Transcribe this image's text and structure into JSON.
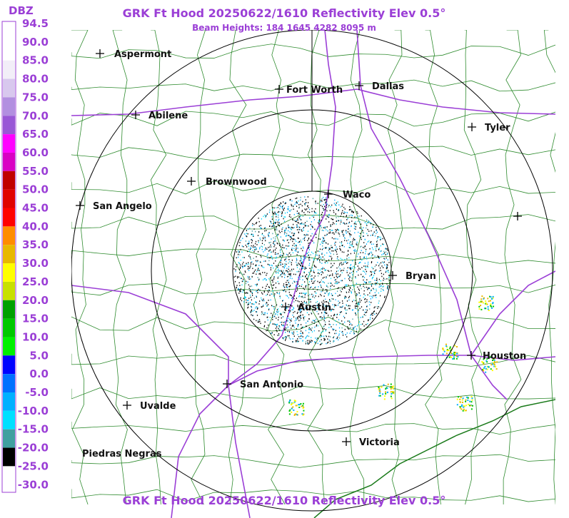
{
  "header": {
    "title": "GRK Ft Hood 20250622/1610 Reflectivity Elev 0.5°",
    "subtitle": "Beam Heights: 184 1645 4282 8095 m",
    "footer": "GRK Ft Hood 20250622/1610 Reflectivity Elev 0.5°"
  },
  "legend": {
    "title": "DBZ",
    "labels": [
      "94.5",
      "90.0",
      "85.0",
      "80.0",
      "75.0",
      "70.0",
      "65.0",
      "60.0",
      "55.0",
      "50.0",
      "45.0",
      "40.0",
      "35.0",
      "30.0",
      "25.0",
      "20.0",
      "15.0",
      "10.0",
      "5.0",
      "0.0",
      "-5.0",
      "-10.0",
      "-15.0",
      "-20.0",
      "-25.0",
      "-30.0"
    ]
  },
  "cities": [
    "Aspermont",
    "Fort Worth",
    "Dallas",
    "Abilene",
    "Tyler",
    "Brownwood",
    "Waco",
    "San Angelo",
    "Bryan",
    "Austin",
    "Houston",
    "San Antonio",
    "Uvalde",
    "Victoria",
    "Piedras Negras"
  ]
}
